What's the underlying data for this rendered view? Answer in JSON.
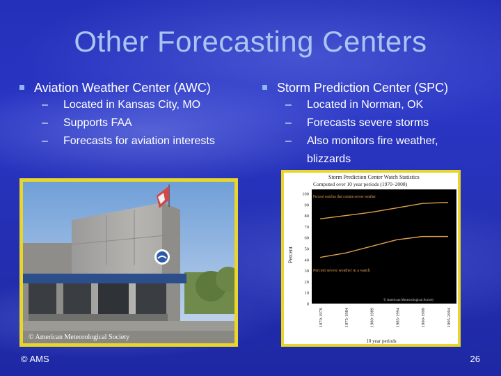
{
  "slide": {
    "title": "Other Forecasting Centers",
    "footer_left": "© AMS",
    "page_number": "26"
  },
  "left_column": {
    "heading": "Aviation Weather Center (AWC)",
    "bullets": [
      "Located in Kansas City, MO",
      "Supports FAA",
      "Forecasts for aviation interests"
    ],
    "photo_watermark": "© American Meteorological Society"
  },
  "right_column": {
    "heading": "Storm Prediction Center (SPC)",
    "bullets": [
      "Located in Norman, OK",
      "Forecasts severe storms",
      "Also monitors fire weather,",
      "blizzards"
    ]
  },
  "colors": {
    "background": "#2430b8",
    "title": "#a9c6f2",
    "frame": "#e8d62a",
    "bullet": "#8fb6f0"
  },
  "chart_data": {
    "type": "line",
    "title": "Storm Prediction Center Watch Statistics",
    "subtitle": "Computed over 10 year periods (1970–2008)",
    "ylabel": "Percent",
    "xlabel": "10 year periods",
    "ylim": [
      0,
      100
    ],
    "yticks": [
      "0",
      "10",
      "20",
      "30",
      "40",
      "50",
      "60",
      "70",
      "80",
      "90",
      "100"
    ],
    "categories": [
      "1970-1979",
      "1975-1984",
      "1980-1989",
      "1985-1994",
      "1990-1999",
      "1995-2004"
    ],
    "series": [
      {
        "name": "Percent watches that contain severe weather",
        "values": [
          77,
          80,
          83,
          87,
          91,
          92
        ],
        "color": "#e0a050"
      },
      {
        "name": "Percent severe weather in a watch",
        "values": [
          42,
          46,
          52,
          58,
          61,
          61
        ],
        "color": "#e0a050"
      }
    ],
    "annotation": "© American Meteorological Society",
    "grid": false
  }
}
